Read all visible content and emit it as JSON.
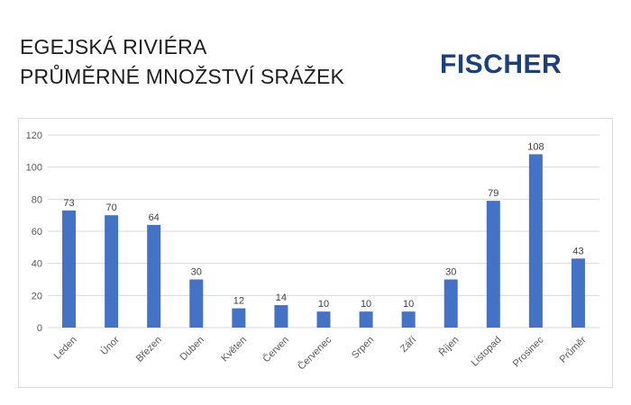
{
  "header": {
    "title_line1": "EGEJSKÁ RIVIÉRA",
    "title_line2": "PRŮMĚRNÉ MNOŽSTVÍ SRÁŽEK",
    "logo_text": "FISCHER"
  },
  "colors": {
    "bar": "#4472c4",
    "logo": "#1d3f7c",
    "grid": "#d9d9d9"
  },
  "chart_data": {
    "type": "bar",
    "categories": [
      "Leden",
      "Únor",
      "Březen",
      "Duben",
      "Květen",
      "Červen",
      "Červenec",
      "Srpen",
      "Září",
      "Říjen",
      "Listopad",
      "Prosinec",
      "Průměr"
    ],
    "values": [
      73,
      70,
      64,
      30,
      12,
      14,
      10,
      10,
      10,
      30,
      79,
      108,
      43
    ],
    "data_labels": [
      "73",
      "70",
      "64",
      "30",
      "12",
      "14",
      "10",
      "10",
      "10",
      "30",
      "79",
      "108",
      "43"
    ],
    "yticks": [
      "0",
      "20",
      "40",
      "60",
      "80",
      "100",
      "120"
    ],
    "ylim": [
      0,
      120
    ],
    "grid": true,
    "legend": false
  }
}
